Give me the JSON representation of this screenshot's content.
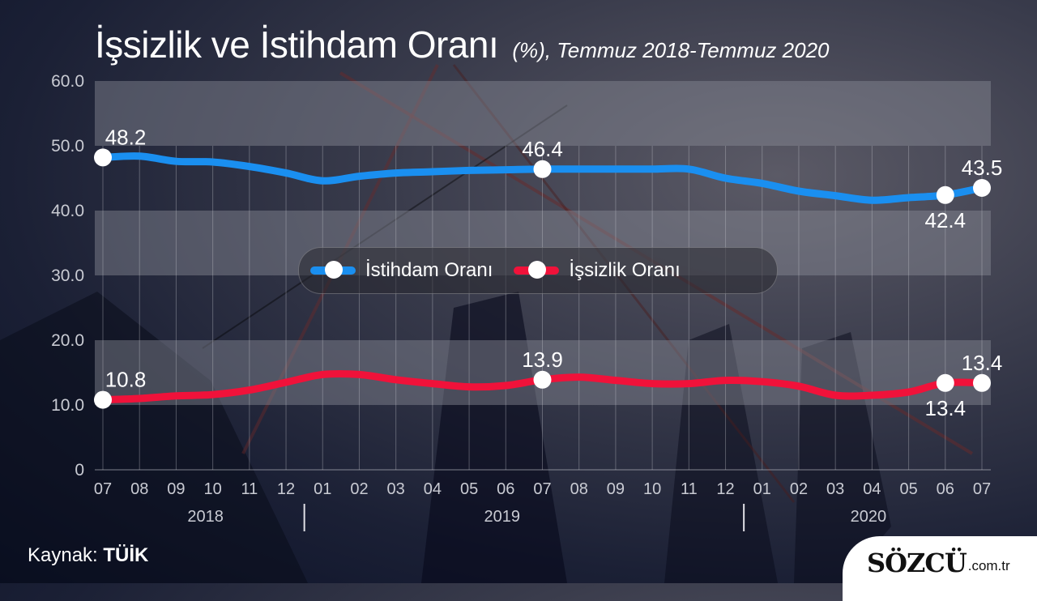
{
  "header": {
    "title": "İşsizlik ve İstihdam Oranı",
    "subtitle": "(%), Temmuz 2018-Temmuz 2020"
  },
  "legend": {
    "items": [
      {
        "label": "İstihdam Oranı",
        "color": "#1a8ff0"
      },
      {
        "label": "İşsizlik Oranı",
        "color": "#f0123a"
      }
    ]
  },
  "footer": {
    "source_prefix": "Kaynak:",
    "source_name": "TÜİK",
    "logo_main": "SÖZCÜ",
    "logo_suffix": ".com.tr"
  },
  "chart_data": {
    "type": "line",
    "title": "İşsizlik ve İstihdam Oranı (%), Temmuz 2018-Temmuz 2020",
    "xlabel": "",
    "ylabel": "",
    "ylim": [
      0,
      60
    ],
    "yticks": [
      "0",
      "10.0",
      "20.0",
      "30.0",
      "40.0",
      "50.0",
      "60.0"
    ],
    "categories": [
      "07",
      "08",
      "09",
      "10",
      "11",
      "12",
      "01",
      "02",
      "03",
      "04",
      "05",
      "06",
      "07",
      "08",
      "09",
      "10",
      "11",
      "12",
      "01",
      "02",
      "03",
      "04",
      "05",
      "06",
      "07"
    ],
    "year_labels": [
      {
        "label": "2018",
        "center_index": 2.8
      },
      {
        "label": "2019",
        "center_index": 10.9
      },
      {
        "label": "2020",
        "center_index": 20.9
      }
    ],
    "year_separators": [
      5.5,
      17.5
    ],
    "grid": true,
    "legend_position": "center",
    "series": [
      {
        "name": "İstihdam Oranı",
        "color": "#1a8ff0",
        "values": [
          48.2,
          48.4,
          47.6,
          47.5,
          46.8,
          45.8,
          44.6,
          45.3,
          45.8,
          46.0,
          46.2,
          46.3,
          46.4,
          46.4,
          46.4,
          46.4,
          46.4,
          45.0,
          44.2,
          43.0,
          42.3,
          41.6,
          42.0,
          42.4,
          43.5
        ],
        "labels": [
          {
            "index": 0,
            "text": "48.2",
            "pos": "above"
          },
          {
            "index": 12,
            "text": "46.4",
            "pos": "above"
          },
          {
            "index": 23,
            "text": "42.4",
            "pos": "below"
          },
          {
            "index": 24,
            "text": "43.5",
            "pos": "above"
          }
        ]
      },
      {
        "name": "İşsizlik Oranı",
        "color": "#f0123a",
        "values": [
          10.8,
          11.0,
          11.4,
          11.6,
          12.3,
          13.5,
          14.7,
          14.7,
          13.9,
          13.3,
          12.8,
          13.0,
          13.9,
          14.3,
          13.8,
          13.3,
          13.3,
          13.8,
          13.6,
          12.9,
          11.5,
          11.5,
          12.0,
          13.4,
          13.4
        ],
        "labels": [
          {
            "index": 0,
            "text": "10.8",
            "pos": "above"
          },
          {
            "index": 12,
            "text": "13.9",
            "pos": "above"
          },
          {
            "index": 23,
            "text": "13.4",
            "pos": "below"
          },
          {
            "index": 24,
            "text": "13.4",
            "pos": "above"
          }
        ]
      }
    ],
    "bands": [
      [
        50,
        60
      ],
      [
        30,
        40
      ],
      [
        10,
        20
      ]
    ]
  }
}
